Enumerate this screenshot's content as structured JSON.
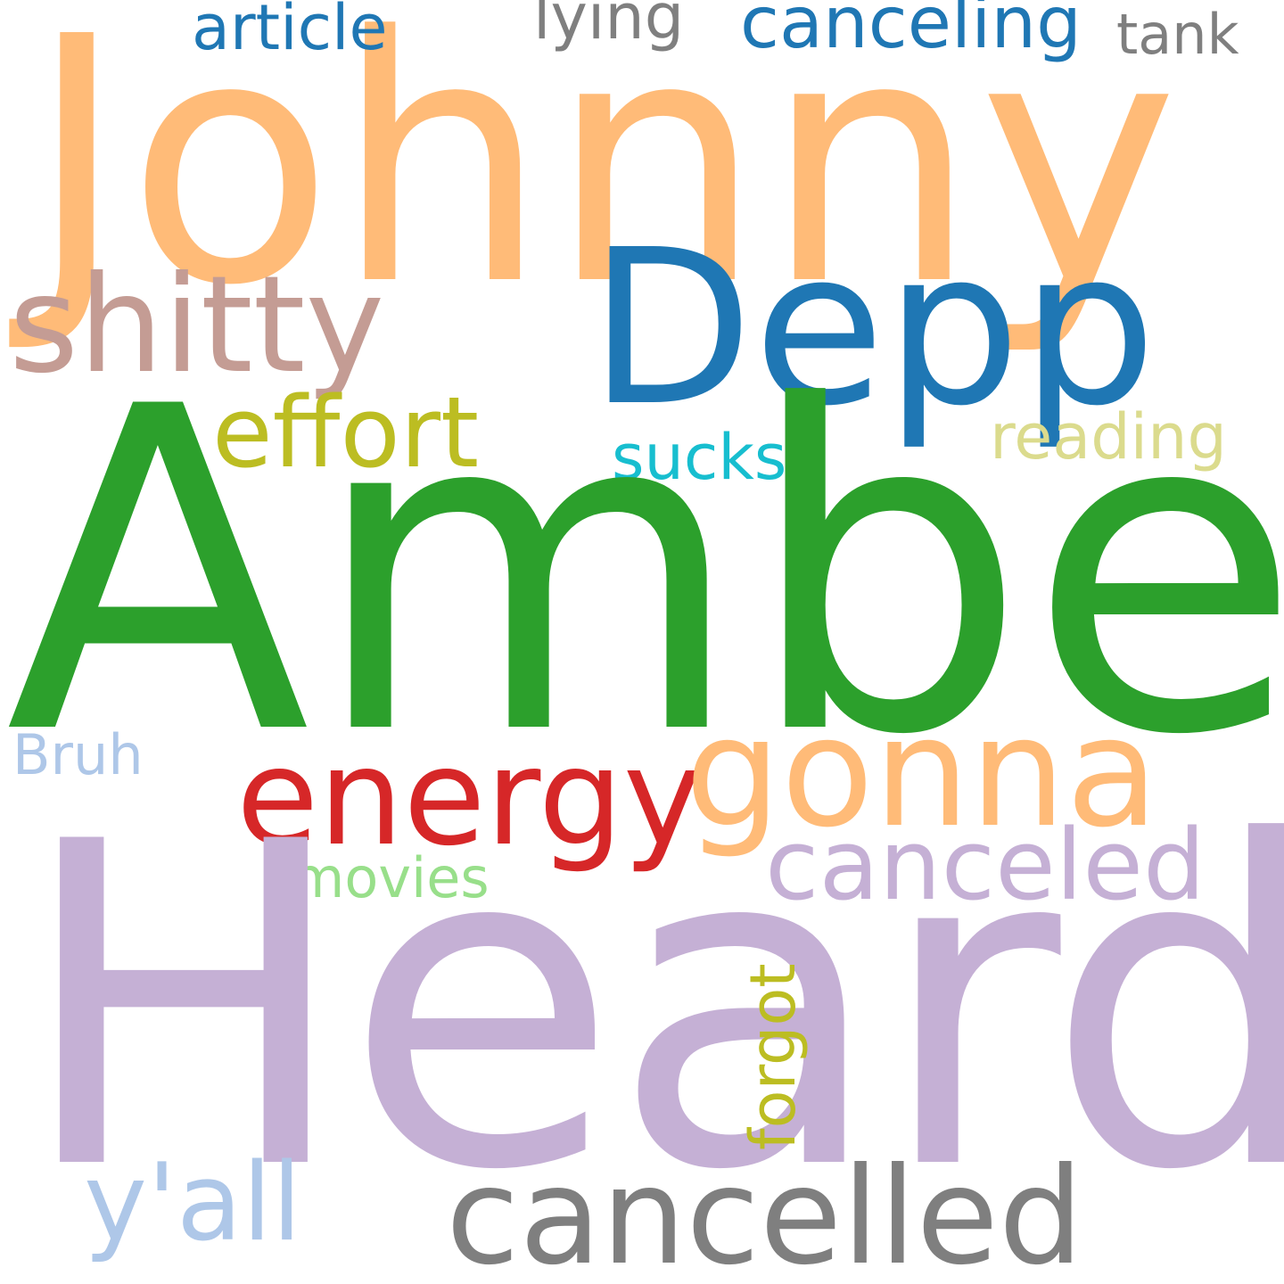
{
  "words": {
    "johnny": {
      "text": "Johnny",
      "color": "#ffbb78"
    },
    "amber": {
      "text": "Amber",
      "color": "#2ca02c"
    },
    "heard": {
      "text": "Heard",
      "color": "#c5b0d5"
    },
    "depp": {
      "text": "Depp",
      "color": "#1f77b4"
    },
    "shitty": {
      "text": "shitty",
      "color": "#c49c94"
    },
    "effort": {
      "text": "effort",
      "color": "#bcbd22"
    },
    "sucks": {
      "text": "sucks",
      "color": "#17becf"
    },
    "reading": {
      "text": "reading",
      "color": "#dbdb8d"
    },
    "energy": {
      "text": "energy",
      "color": "#d62728"
    },
    "gonna": {
      "text": "gonna",
      "color": "#ffbb78"
    },
    "canceled": {
      "text": "canceled",
      "color": "#c5b0d5"
    },
    "movies": {
      "text": "movies",
      "color": "#98df8a"
    },
    "bruh": {
      "text": "Bruh",
      "color": "#aec7e8"
    },
    "article": {
      "text": "article",
      "color": "#1f77b4"
    },
    "lying": {
      "text": "lying",
      "color": "#7f7f7f"
    },
    "canceling": {
      "text": "canceling",
      "color": "#1f77b4"
    },
    "tank": {
      "text": "tank",
      "color": "#7f7f7f"
    },
    "yall": {
      "text": "y'all",
      "color": "#aec7e8"
    },
    "cancelled": {
      "text": "cancelled",
      "color": "#7f7f7f"
    },
    "forgot": {
      "text": "forgot",
      "color": "#bcbd22"
    }
  }
}
